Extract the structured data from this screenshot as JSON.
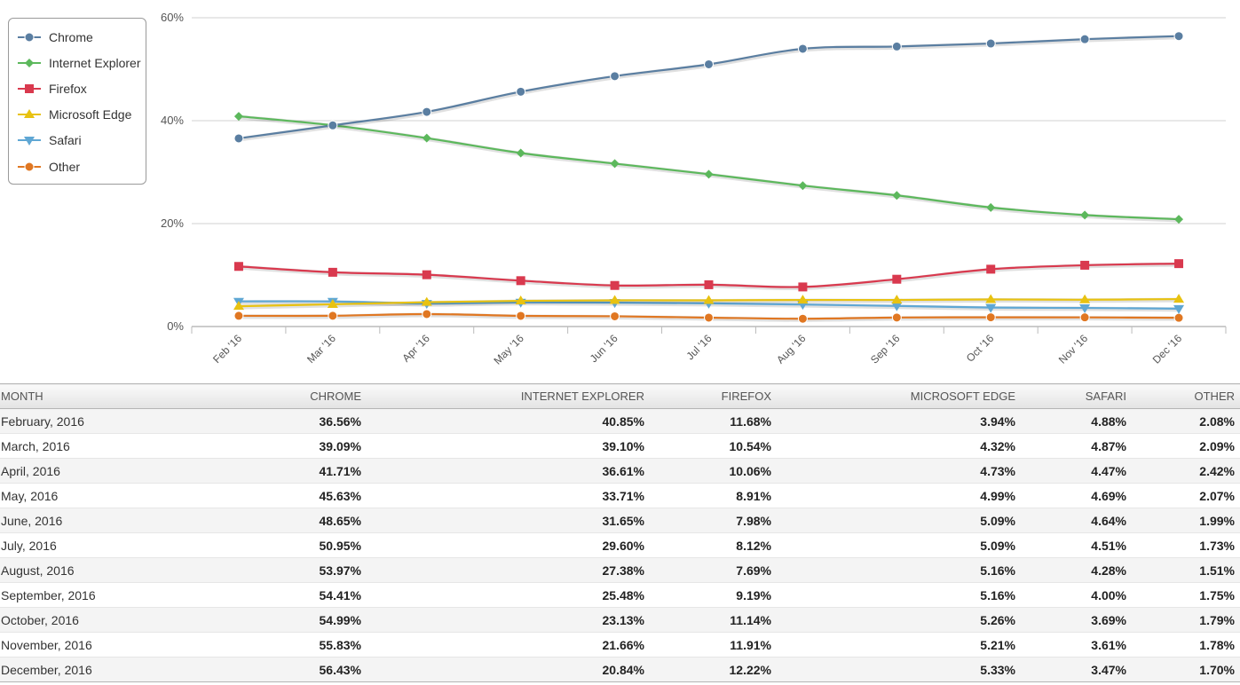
{
  "chart_data": {
    "type": "line",
    "categories": [
      "Feb '16",
      "Mar '16",
      "Apr '16",
      "May '16",
      "Jun '16",
      "Jul '16",
      "Aug '16",
      "Sep '16",
      "Oct '16",
      "Nov '16",
      "Dec '16"
    ],
    "y_ticks": [
      "0%",
      "20%",
      "40%",
      "60%"
    ],
    "ylim": [
      0,
      60
    ],
    "grid": true,
    "legend_position": "top-left",
    "series": [
      {
        "name": "Chrome",
        "color": "#5a7ea1",
        "marker": "circle",
        "values": [
          36.56,
          39.09,
          41.71,
          45.63,
          48.65,
          50.95,
          53.97,
          54.41,
          54.99,
          55.83,
          56.43
        ]
      },
      {
        "name": "Internet Explorer",
        "color": "#5cb85c",
        "marker": "diamond",
        "values": [
          40.85,
          39.1,
          36.61,
          33.71,
          31.65,
          29.6,
          27.38,
          25.48,
          23.13,
          21.66,
          20.84
        ]
      },
      {
        "name": "Firefox",
        "color": "#d9394e",
        "marker": "square",
        "values": [
          11.68,
          10.54,
          10.06,
          8.91,
          7.98,
          8.12,
          7.69,
          9.19,
          11.14,
          11.91,
          12.22
        ]
      },
      {
        "name": "Microsoft Edge",
        "color": "#e8c211",
        "marker": "triangle",
        "values": [
          3.94,
          4.32,
          4.73,
          4.99,
          5.09,
          5.09,
          5.16,
          5.16,
          5.26,
          5.21,
          5.33
        ]
      },
      {
        "name": "Safari",
        "color": "#5fa7d4",
        "marker": "triangle-down",
        "values": [
          4.88,
          4.87,
          4.47,
          4.69,
          4.64,
          4.51,
          4.28,
          4.0,
          3.69,
          3.61,
          3.47
        ]
      },
      {
        "name": "Other",
        "color": "#e07722",
        "marker": "circle",
        "values": [
          2.08,
          2.09,
          2.42,
          2.07,
          1.99,
          1.73,
          1.51,
          1.75,
          1.79,
          1.78,
          1.7
        ]
      }
    ]
  },
  "table": {
    "headers": [
      "MONTH",
      "CHROME",
      "INTERNET EXPLORER",
      "FIREFOX",
      "MICROSOFT EDGE",
      "SAFARI",
      "OTHER"
    ],
    "rows": [
      [
        "February, 2016",
        "36.56%",
        "40.85%",
        "11.68%",
        "3.94%",
        "4.88%",
        "2.08%"
      ],
      [
        "March, 2016",
        "39.09%",
        "39.10%",
        "10.54%",
        "4.32%",
        "4.87%",
        "2.09%"
      ],
      [
        "April, 2016",
        "41.71%",
        "36.61%",
        "10.06%",
        "4.73%",
        "4.47%",
        "2.42%"
      ],
      [
        "May, 2016",
        "45.63%",
        "33.71%",
        "8.91%",
        "4.99%",
        "4.69%",
        "2.07%"
      ],
      [
        "June, 2016",
        "48.65%",
        "31.65%",
        "7.98%",
        "5.09%",
        "4.64%",
        "1.99%"
      ],
      [
        "July, 2016",
        "50.95%",
        "29.60%",
        "8.12%",
        "5.09%",
        "4.51%",
        "1.73%"
      ],
      [
        "August, 2016",
        "53.97%",
        "27.38%",
        "7.69%",
        "5.16%",
        "4.28%",
        "1.51%"
      ],
      [
        "September, 2016",
        "54.41%",
        "25.48%",
        "9.19%",
        "5.16%",
        "4.00%",
        "1.75%"
      ],
      [
        "October, 2016",
        "54.99%",
        "23.13%",
        "11.14%",
        "5.26%",
        "3.69%",
        "1.79%"
      ],
      [
        "November, 2016",
        "55.83%",
        "21.66%",
        "11.91%",
        "5.21%",
        "3.61%",
        "1.78%"
      ],
      [
        "December, 2016",
        "56.43%",
        "20.84%",
        "12.22%",
        "5.33%",
        "3.47%",
        "1.70%"
      ]
    ]
  }
}
